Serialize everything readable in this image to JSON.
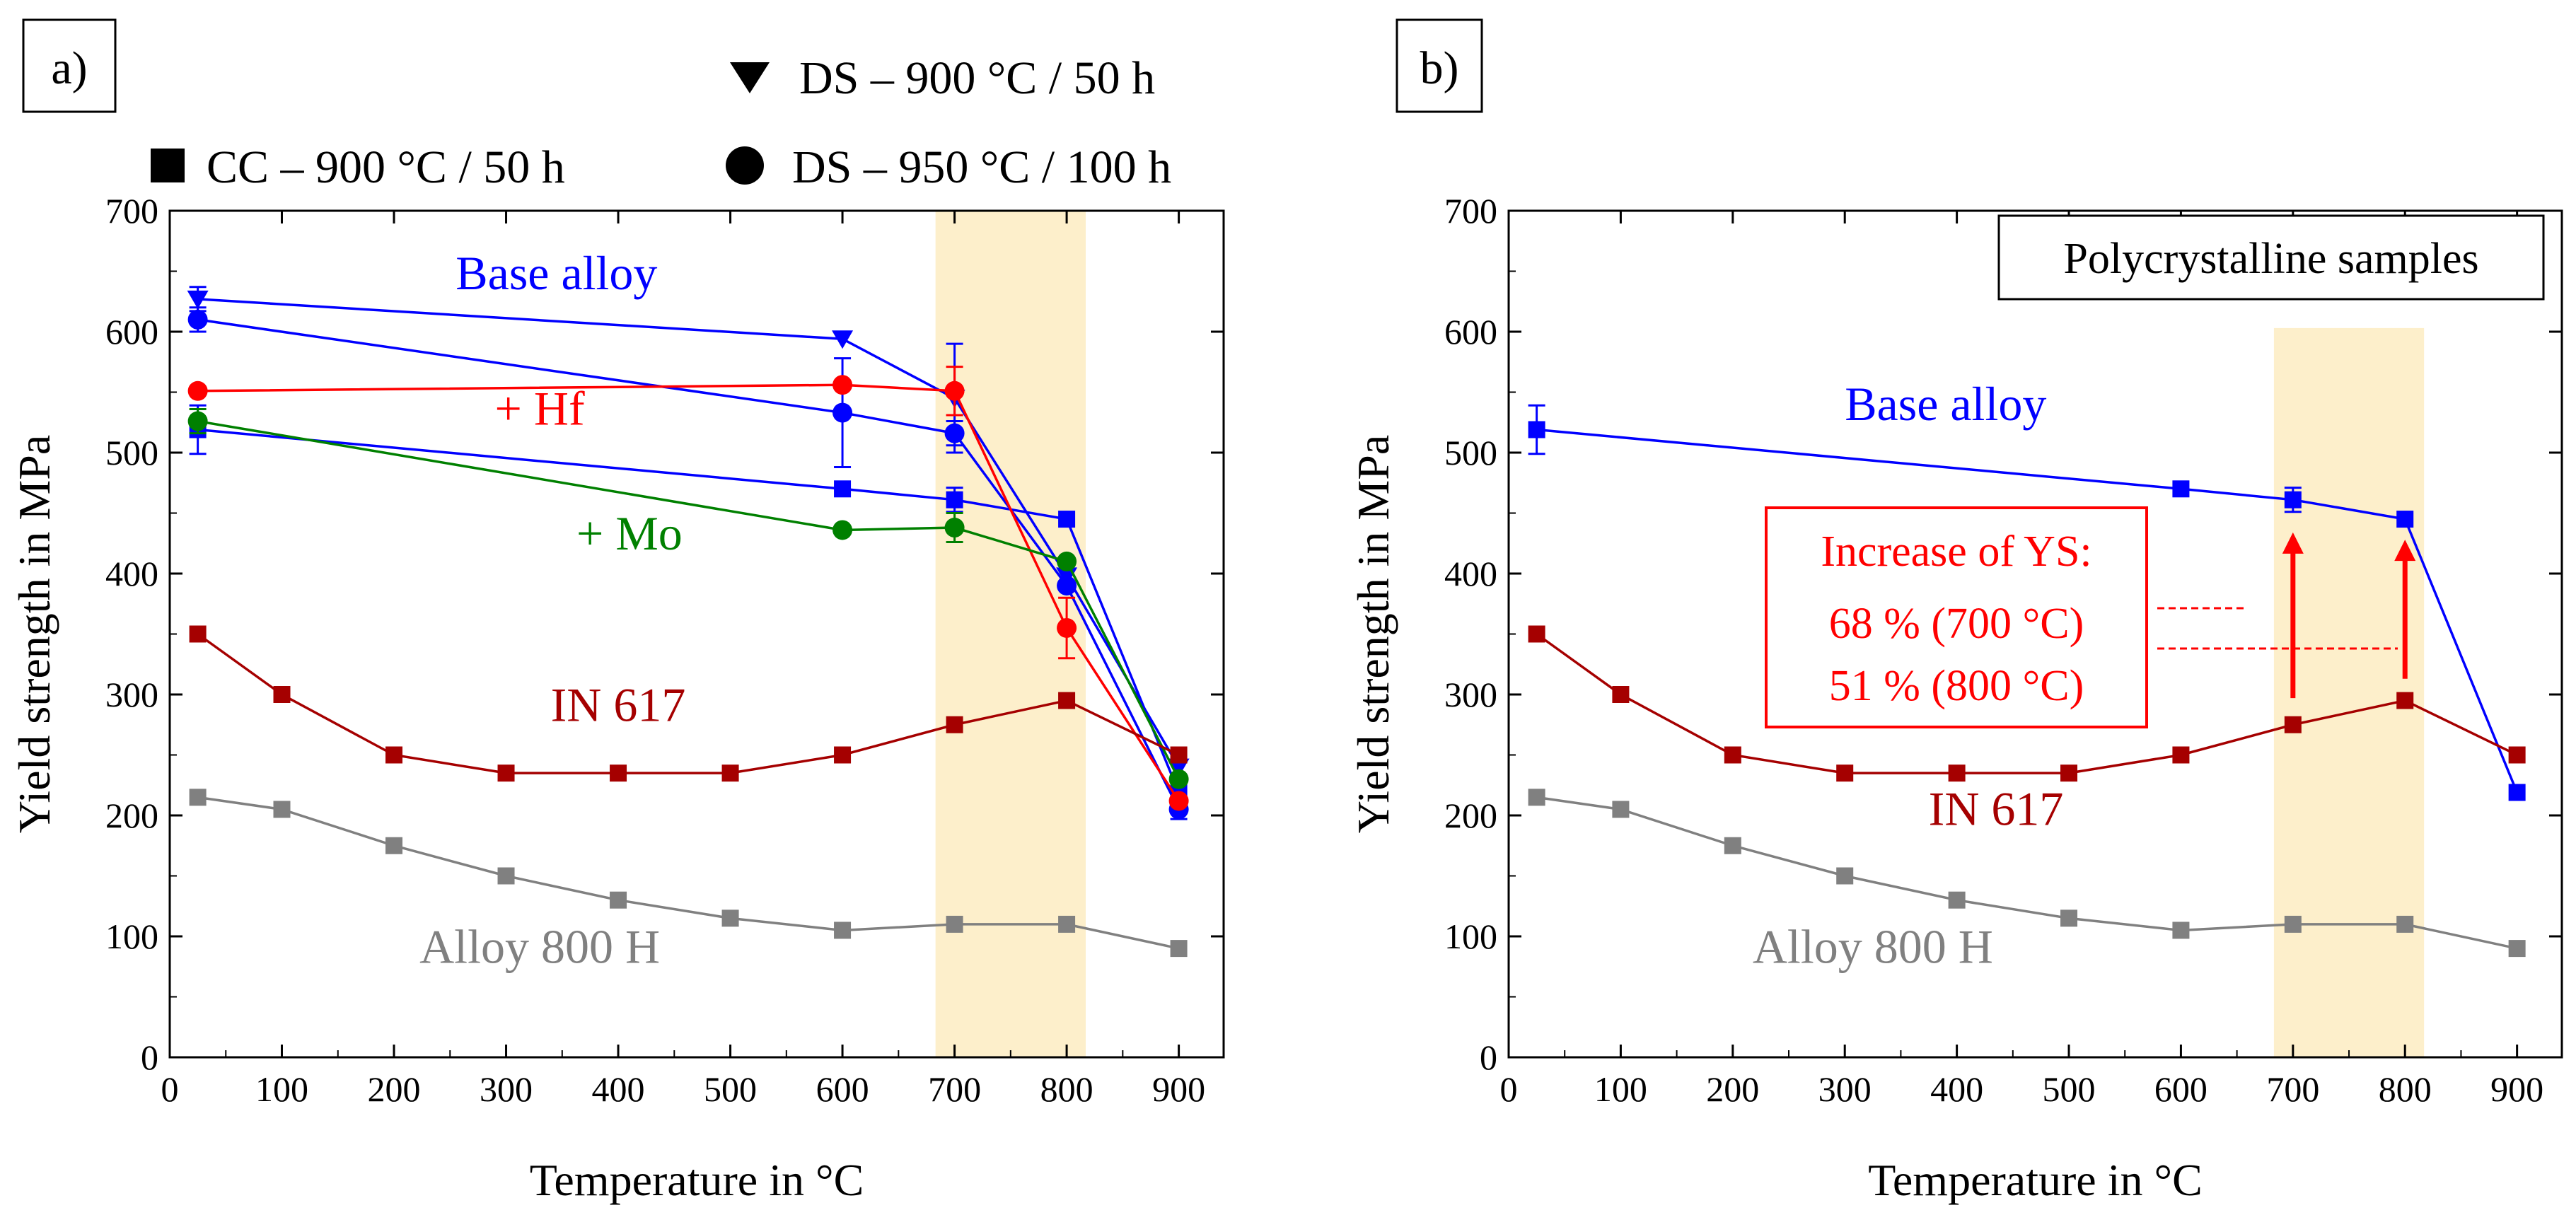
{
  "panels_legend": {
    "items": [
      {
        "marker": "square",
        "label": "CC – 900 °C / 50 h"
      },
      {
        "marker": "triangle-down",
        "label": "DS – 900 °C / 50 h"
      },
      {
        "marker": "circle",
        "label": "DS – 950 °C / 100 h"
      }
    ]
  },
  "colors": {
    "base": "#0000ff",
    "hf": "#ff0000",
    "mo": "#008000",
    "in617": "#a50000",
    "alloy800": "#808080",
    "highlight": "#fdefcb",
    "annotation": "#ff0000"
  },
  "chart_data": [
    {
      "type": "line",
      "panel_label": "a)",
      "xlabel": "Temperature in °C",
      "ylabel": "Yield strength in MPa",
      "xlim": [
        0,
        940
      ],
      "ylim": [
        0,
        700
      ],
      "xticks": [
        0,
        100,
        200,
        300,
        400,
        500,
        600,
        700,
        800,
        900
      ],
      "yticks": [
        0,
        100,
        200,
        300,
        400,
        500,
        600,
        700
      ],
      "highlight_band": [
        683,
        817
      ],
      "series": [
        {
          "name": "Base alloy DS 900/50",
          "color_key": "base",
          "marker": "triangle-down",
          "x": [
            25,
            600,
            700,
            800,
            900
          ],
          "y": [
            627,
            594,
            545,
            398,
            240
          ],
          "err": [
            10,
            0,
            45,
            0,
            0
          ]
        },
        {
          "name": "Base alloy DS 950/100",
          "color_key": "base",
          "marker": "circle",
          "x": [
            25,
            600,
            700,
            800,
            900
          ],
          "y": [
            610,
            533,
            516,
            390,
            205
          ],
          "err": [
            10,
            45,
            10,
            0,
            8
          ]
        },
        {
          "name": "Base alloy CC",
          "color_key": "base",
          "marker": "square",
          "x": [
            25,
            600,
            700,
            800,
            900
          ],
          "y": [
            519,
            470,
            461,
            445,
            219
          ],
          "err": [
            20,
            0,
            10,
            0,
            0
          ]
        },
        {
          "name": "+ Hf",
          "color_key": "hf",
          "marker": "circle",
          "x": [
            25,
            600,
            700,
            800,
            900
          ],
          "y": [
            551,
            556,
            551,
            355,
            212
          ],
          "err": [
            0,
            0,
            20,
            25,
            0
          ]
        },
        {
          "name": "+ Mo",
          "color_key": "mo",
          "marker": "circle",
          "x": [
            25,
            600,
            700,
            800,
            900
          ],
          "y": [
            526,
            436,
            438,
            410,
            230
          ],
          "err": [
            10,
            0,
            12,
            0,
            0
          ]
        },
        {
          "name": "IN 617",
          "color_key": "in617",
          "marker": "square",
          "x": [
            25,
            100,
            200,
            300,
            400,
            500,
            600,
            700,
            800,
            900
          ],
          "y": [
            350,
            300,
            250,
            235,
            235,
            235,
            250,
            275,
            295,
            250
          ],
          "err": []
        },
        {
          "name": "Alloy 800 H",
          "color_key": "alloy800",
          "marker": "square",
          "x": [
            25,
            100,
            200,
            300,
            400,
            500,
            600,
            700,
            800,
            900
          ],
          "y": [
            215,
            205,
            175,
            150,
            130,
            115,
            105,
            110,
            110,
            90
          ],
          "err": []
        }
      ],
      "annotations": [
        {
          "text": "Base alloy",
          "color_key": "base",
          "x": 345,
          "y": 635
        },
        {
          "text": "+ Hf",
          "color_key": "hf",
          "x": 330,
          "y": 523
        },
        {
          "text": "+ Mo",
          "color_key": "mo",
          "x": 410,
          "y": 420
        },
        {
          "text": "IN 617",
          "color_key": "in617",
          "x": 400,
          "y": 278
        },
        {
          "text": "Alloy 800 H",
          "color_key": "alloy800",
          "x": 330,
          "y": 78
        }
      ]
    },
    {
      "type": "line",
      "panel_label": "b)",
      "title_box": "Polycrystalline samples",
      "xlabel": "Temperature in °C",
      "ylabel": "Yield strength in MPa",
      "xlim": [
        0,
        940
      ],
      "ylim": [
        0,
        700
      ],
      "xticks": [
        0,
        100,
        200,
        300,
        400,
        500,
        600,
        700,
        800,
        900
      ],
      "yticks": [
        0,
        100,
        200,
        300,
        400,
        500,
        600,
        700
      ],
      "highlight_band": [
        683,
        817
      ],
      "highlight_top": 603,
      "series": [
        {
          "name": "Base alloy",
          "color_key": "base",
          "marker": "square",
          "x": [
            25,
            600,
            700,
            800,
            900
          ],
          "y": [
            519,
            470,
            461,
            445,
            219
          ],
          "err": [
            20,
            0,
            10,
            0,
            0
          ]
        },
        {
          "name": "IN 617",
          "color_key": "in617",
          "marker": "square",
          "x": [
            25,
            100,
            200,
            300,
            400,
            500,
            600,
            700,
            800,
            900
          ],
          "y": [
            350,
            300,
            250,
            235,
            235,
            235,
            250,
            275,
            295,
            250
          ],
          "err": []
        },
        {
          "name": "Alloy 800 H",
          "color_key": "alloy800",
          "marker": "square",
          "x": [
            25,
            100,
            200,
            300,
            400,
            500,
            600,
            700,
            800,
            900
          ],
          "y": [
            215,
            205,
            175,
            150,
            130,
            115,
            105,
            110,
            110,
            90
          ],
          "err": []
        }
      ],
      "annotations": [
        {
          "text": "Base alloy",
          "color_key": "base",
          "x": 390,
          "y": 527
        },
        {
          "text": "IN 617",
          "color_key": "in617",
          "x": 435,
          "y": 192
        },
        {
          "text": "Alloy 800 H",
          "color_key": "alloy800",
          "x": 325,
          "y": 78
        }
      ],
      "increase_box": {
        "lines": [
          "Increase of YS:",
          "68 % (700 °C)",
          "51 % (800 °C)"
        ],
        "arrows": [
          {
            "x": 700,
            "from": 297,
            "to": 434
          },
          {
            "x": 800,
            "from": 313,
            "to": 428
          }
        ]
      }
    }
  ]
}
